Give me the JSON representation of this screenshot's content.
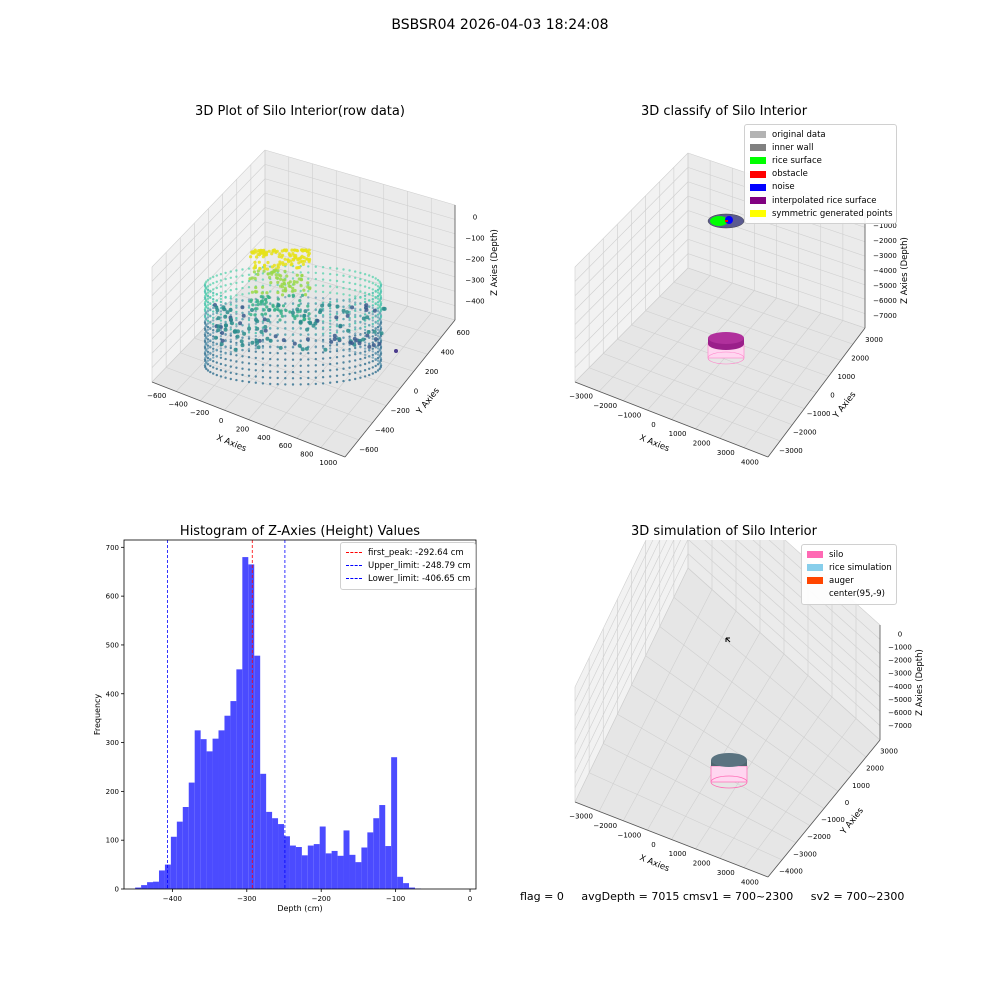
{
  "suptitle": "BSBSR04 2026-04-03 18:24:08",
  "panels": {
    "raw": {
      "title": "3D Plot of Silo Interior(row data)",
      "xlabel": "X Axies",
      "ylabel": "Y Axies",
      "zlabel": "Z Axies (Depth)",
      "xticks": [
        "−600",
        "−400",
        "−200",
        "0",
        "200",
        "400",
        "600",
        "800",
        "1000"
      ],
      "yticks": [
        "−600",
        "−400",
        "−200",
        "0",
        "200",
        "400",
        "600"
      ],
      "zticks": [
        "0",
        "−100",
        "−200",
        "−300",
        "−400"
      ]
    },
    "classify": {
      "title": "3D classify of Silo Interior",
      "xlabel": "X Axies",
      "ylabel": "Y Axies",
      "zlabel": "Z Axies (Depth)",
      "xticks": [
        "−3000",
        "−2000",
        "−1000",
        "0",
        "1000",
        "2000",
        "3000",
        "4000"
      ],
      "yticks": [
        "−3000",
        "−2000",
        "−1000",
        "0",
        "1000",
        "2000",
        "3000"
      ],
      "zticks": [
        "−1000",
        "−2000",
        "−3000",
        "−4000",
        "−5000",
        "−6000",
        "−7000"
      ],
      "legend": [
        {
          "label": "original data",
          "color": "#b3b3b3"
        },
        {
          "label": "inner wall",
          "color": "#808080"
        },
        {
          "label": "rice surface",
          "color": "#00ff00"
        },
        {
          "label": "obstacle",
          "color": "#ff0000"
        },
        {
          "label": "noise",
          "color": "#0000ff"
        },
        {
          "label": "interpolated rice surface",
          "color": "#800080"
        },
        {
          "label": "symmetric generated points",
          "color": "#ffff00"
        }
      ]
    },
    "simulation": {
      "title": "3D simulation of Silo Interior",
      "xlabel": "X Axies",
      "ylabel": "Y Axies",
      "zlabel": "Z Axies (Depth)",
      "xticks": [
        "−3000",
        "−2000",
        "−1000",
        "0",
        "1000",
        "2000",
        "3000",
        "4000"
      ],
      "yticks": [
        "−4000",
        "−3000",
        "−2000",
        "−1000",
        "0",
        "1000",
        "2000",
        "3000"
      ],
      "zticks": [
        "0",
        "−1000",
        "−2000",
        "−3000",
        "−4000",
        "−5000",
        "−6000",
        "−7000"
      ],
      "legend": [
        {
          "label": "silo",
          "color": "#ff69b4"
        },
        {
          "label": "rice simulation",
          "color": "#87ceeb"
        },
        {
          "label": "auger",
          "color": "#ff4500"
        },
        {
          "label": "center(95,-9)",
          "color": ""
        }
      ]
    }
  },
  "chart_data": {
    "type": "bar",
    "title": "Histogram of Z-Axies (Height) Values",
    "xlabel": "Depth (cm)",
    "ylabel": "Frequency",
    "xlim": [
      -465,
      8
    ],
    "ylim": [
      0,
      715
    ],
    "xticks": [
      -400,
      -300,
      -200,
      -100,
      0
    ],
    "yticks": [
      0,
      100,
      200,
      300,
      400,
      500,
      600,
      700
    ],
    "bar_color": "#4b4bff",
    "bin_start": -450,
    "bin_width": 8,
    "values": [
      3,
      8,
      14,
      15,
      38,
      50,
      107,
      138,
      168,
      218,
      325,
      307,
      282,
      308,
      325,
      355,
      385,
      450,
      680,
      665,
      478,
      236,
      158,
      145,
      133,
      108,
      89,
      86,
      69,
      89,
      92,
      128,
      73,
      78,
      68,
      120,
      70,
      55,
      85,
      116,
      145,
      172,
      88,
      270,
      25,
      12,
      3,
      1
    ],
    "reference_lines": [
      {
        "label": "first_peak: -292.64 cm",
        "x": -292.64,
        "color": "#ff0000"
      },
      {
        "label": "Upper_limit: -248.79 cm",
        "x": -248.79,
        "color": "#0000ff"
      },
      {
        "label": "Lower_limit: -406.65 cm",
        "x": -406.65,
        "color": "#0000ff"
      }
    ],
    "legend_position": "upper right"
  },
  "status": {
    "flag": "flag = 0",
    "avg": "avgDepth = 7015 cmsv1 = 700~2300",
    "sv2": "sv2 = 700~2300"
  }
}
